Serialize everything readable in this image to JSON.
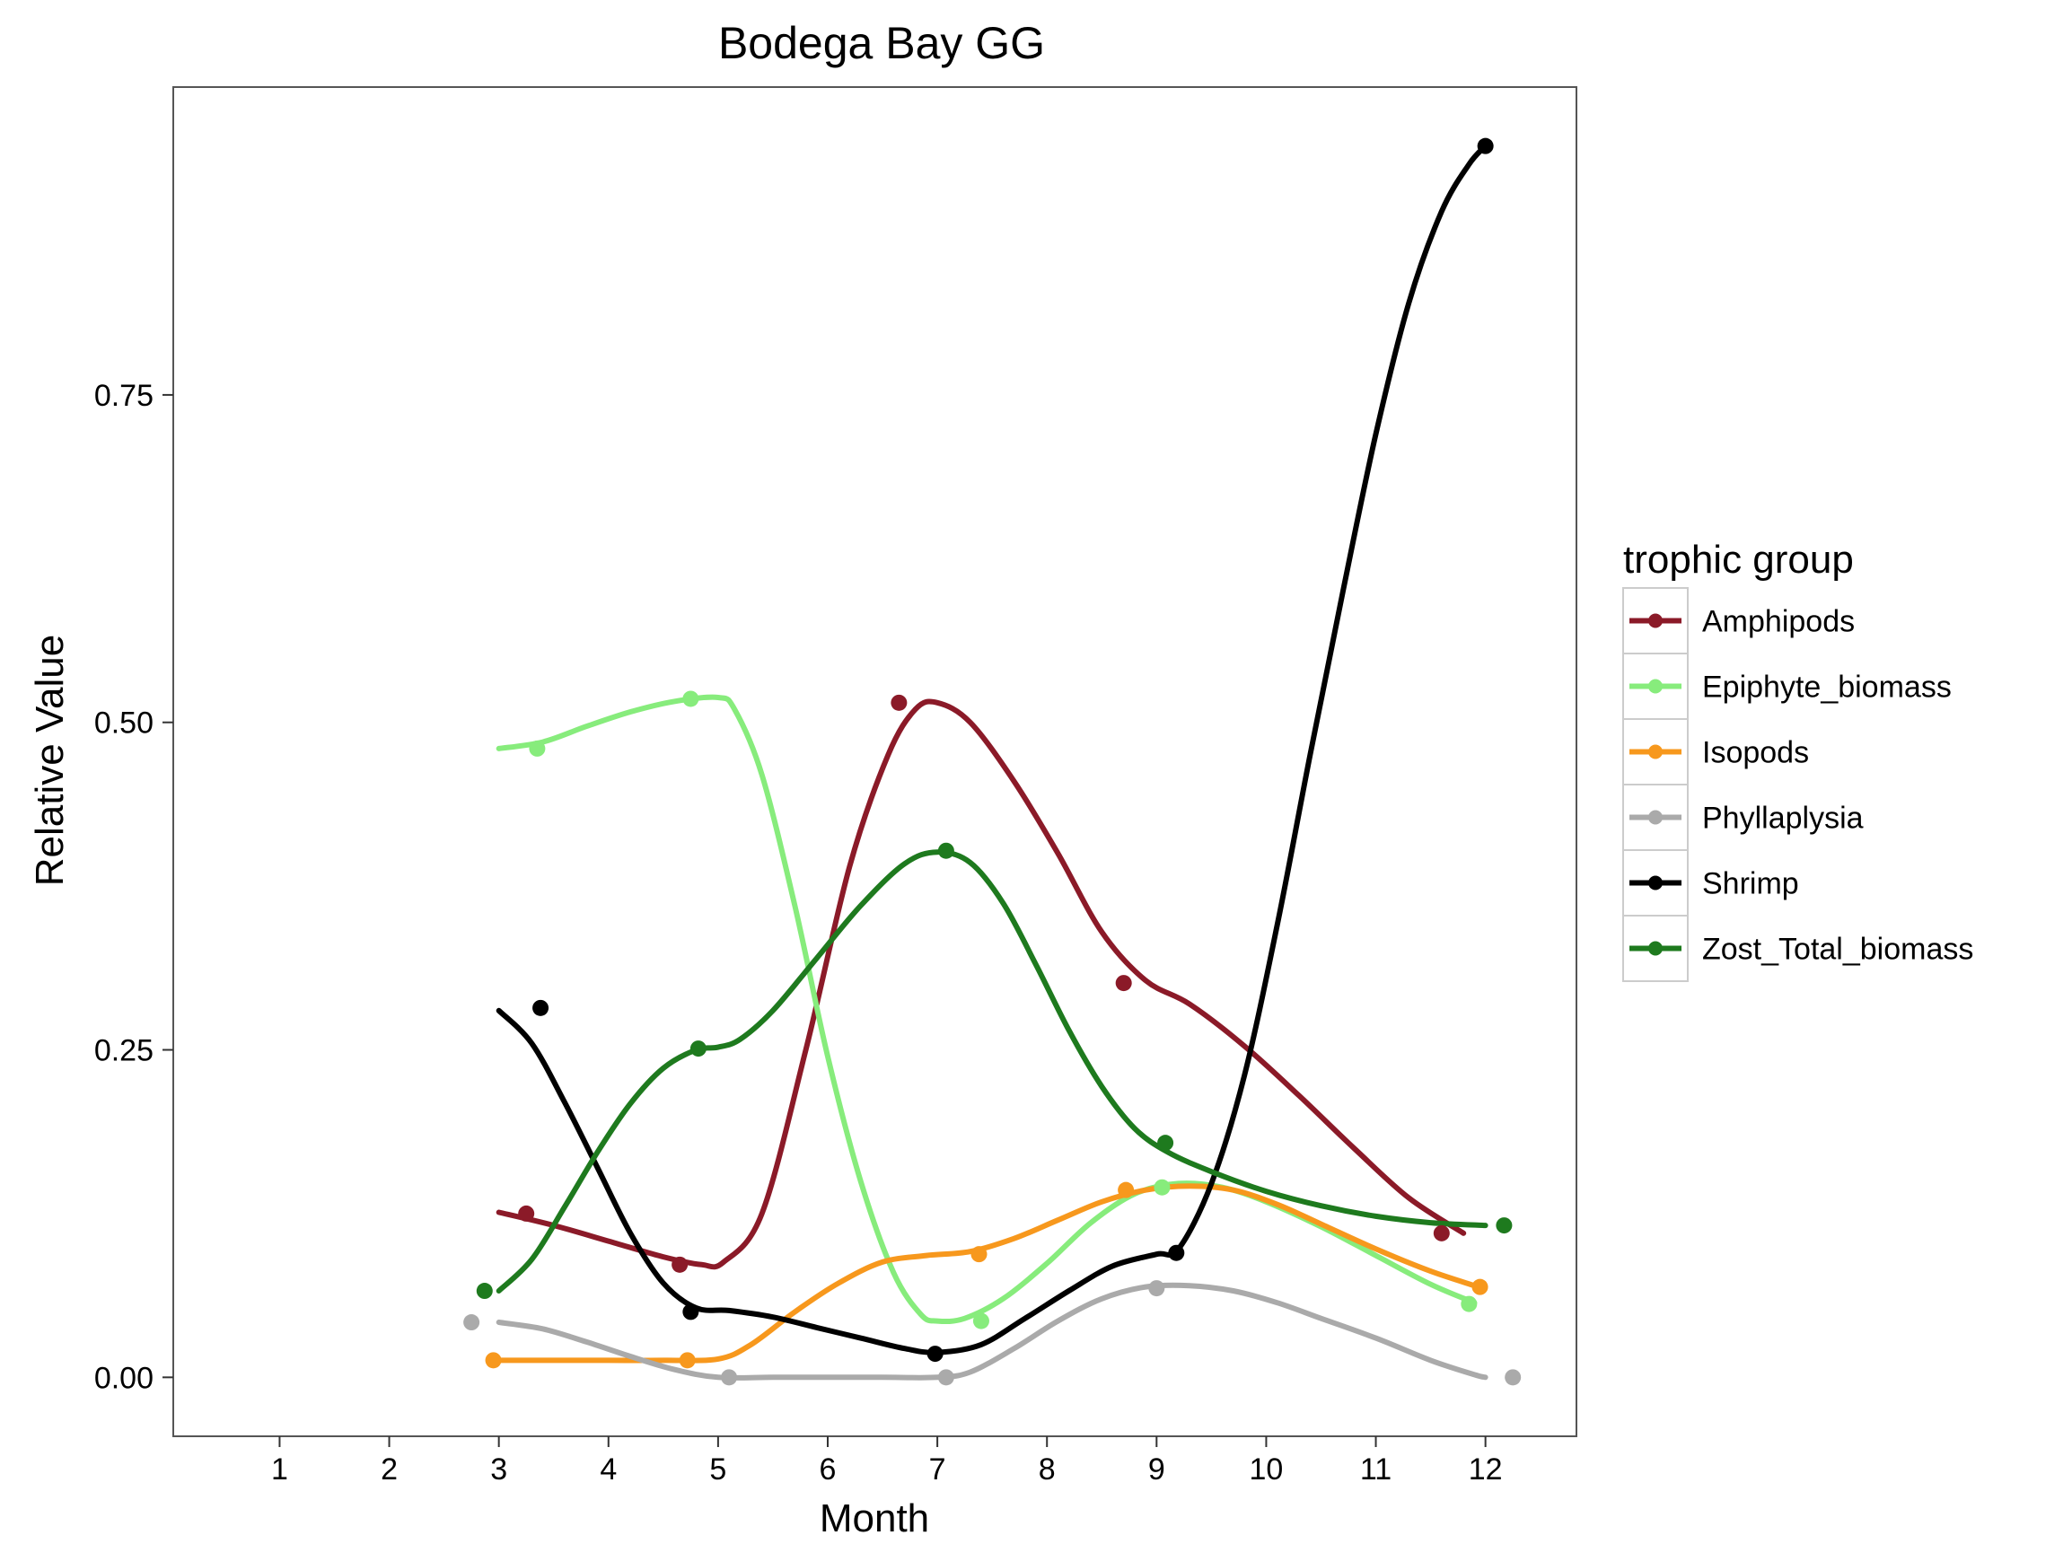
{
  "chart_data": {
    "type": "line",
    "title": "Bodega Bay GG",
    "xlabel": "Month",
    "ylabel": "Relative Value",
    "xlim": [
      0.03,
      12.83
    ],
    "ylim": [
      -0.045,
      0.985
    ],
    "x_ticks": [
      1,
      2,
      3,
      4,
      5,
      6,
      7,
      8,
      9,
      10,
      11,
      12
    ],
    "x_tick_labels": [
      "1",
      "2",
      "3",
      "4",
      "5",
      "6",
      "7",
      "8",
      "9",
      "10",
      "11",
      "12"
    ],
    "y_ticks": [
      0,
      0.25,
      0.5,
      0.75
    ],
    "y_tick_labels": [
      "0.00",
      "0.25",
      "0.50",
      "0.75"
    ],
    "grid": false,
    "legend": {
      "title": "trophic group",
      "position": "right"
    },
    "series": [
      {
        "name": "Amphipods",
        "color": "#8B1A28",
        "points": [
          [
            3.25,
            0.125
          ],
          [
            4.65,
            0.086
          ],
          [
            6.65,
            0.515
          ],
          [
            8.7,
            0.301
          ],
          [
            11.6,
            0.11
          ]
        ],
        "curve": [
          [
            3.0,
            0.126
          ],
          [
            3.5,
            0.116
          ],
          [
            4.0,
            0.104
          ],
          [
            4.5,
            0.092
          ],
          [
            4.85,
            0.086
          ],
          [
            5.05,
            0.088
          ],
          [
            5.4,
            0.125
          ],
          [
            5.8,
            0.25
          ],
          [
            6.2,
            0.39
          ],
          [
            6.55,
            0.475
          ],
          [
            6.8,
            0.51
          ],
          [
            7.0,
            0.515
          ],
          [
            7.3,
            0.5
          ],
          [
            7.7,
            0.455
          ],
          [
            8.1,
            0.4
          ],
          [
            8.5,
            0.34
          ],
          [
            8.9,
            0.303
          ],
          [
            9.3,
            0.285
          ],
          [
            9.8,
            0.253
          ],
          [
            10.3,
            0.215
          ],
          [
            10.8,
            0.175
          ],
          [
            11.3,
            0.137
          ],
          [
            11.8,
            0.11
          ]
        ]
      },
      {
        "name": "Epiphyte_biomass",
        "color": "#87EC7C",
        "points": [
          [
            3.35,
            0.48
          ],
          [
            4.75,
            0.518
          ],
          [
            7.4,
            0.043
          ],
          [
            9.05,
            0.145
          ],
          [
            11.85,
            0.056
          ]
        ],
        "curve": [
          [
            3.0,
            0.48
          ],
          [
            3.4,
            0.485
          ],
          [
            3.8,
            0.497
          ],
          [
            4.2,
            0.508
          ],
          [
            4.6,
            0.516
          ],
          [
            5.0,
            0.519
          ],
          [
            5.15,
            0.51
          ],
          [
            5.4,
            0.46
          ],
          [
            5.7,
            0.36
          ],
          [
            6.0,
            0.245
          ],
          [
            6.3,
            0.15
          ],
          [
            6.6,
            0.08
          ],
          [
            6.85,
            0.048
          ],
          [
            7.0,
            0.043
          ],
          [
            7.25,
            0.045
          ],
          [
            7.6,
            0.06
          ],
          [
            8.0,
            0.087
          ],
          [
            8.4,
            0.118
          ],
          [
            8.8,
            0.14
          ],
          [
            9.2,
            0.148
          ],
          [
            9.6,
            0.145
          ],
          [
            10.0,
            0.134
          ],
          [
            10.5,
            0.115
          ],
          [
            11.0,
            0.093
          ],
          [
            11.5,
            0.071
          ],
          [
            11.9,
            0.057
          ]
        ]
      },
      {
        "name": "Isopods",
        "color": "#F7981D",
        "points": [
          [
            2.95,
            0.013
          ],
          [
            4.72,
            0.013
          ],
          [
            7.38,
            0.094
          ],
          [
            8.72,
            0.143
          ],
          [
            11.95,
            0.069
          ]
        ],
        "curve": [
          [
            3.0,
            0.013
          ],
          [
            3.5,
            0.013
          ],
          [
            4.0,
            0.013
          ],
          [
            4.5,
            0.013
          ],
          [
            5.0,
            0.014
          ],
          [
            5.3,
            0.025
          ],
          [
            5.7,
            0.05
          ],
          [
            6.1,
            0.072
          ],
          [
            6.5,
            0.088
          ],
          [
            6.9,
            0.093
          ],
          [
            7.3,
            0.096
          ],
          [
            7.7,
            0.106
          ],
          [
            8.1,
            0.12
          ],
          [
            8.5,
            0.134
          ],
          [
            8.9,
            0.143
          ],
          [
            9.3,
            0.146
          ],
          [
            9.7,
            0.143
          ],
          [
            10.1,
            0.132
          ],
          [
            10.5,
            0.117
          ],
          [
            11.0,
            0.098
          ],
          [
            11.5,
            0.081
          ],
          [
            11.9,
            0.07
          ]
        ]
      },
      {
        "name": "Phyllaplysia",
        "color": "#AAAAAA",
        "points": [
          [
            2.75,
            0.042
          ],
          [
            5.1,
            0.0
          ],
          [
            7.08,
            0.0
          ],
          [
            9.0,
            0.068
          ],
          [
            12.25,
            0.0
          ]
        ],
        "curve": [
          [
            3.0,
            0.042
          ],
          [
            3.4,
            0.037
          ],
          [
            3.8,
            0.027
          ],
          [
            4.2,
            0.016
          ],
          [
            4.6,
            0.006
          ],
          [
            5.0,
            0.0
          ],
          [
            5.5,
            0.0
          ],
          [
            6.0,
            0.0
          ],
          [
            6.5,
            0.0
          ],
          [
            7.0,
            0.0
          ],
          [
            7.3,
            0.004
          ],
          [
            7.7,
            0.022
          ],
          [
            8.1,
            0.043
          ],
          [
            8.5,
            0.06
          ],
          [
            8.9,
            0.069
          ],
          [
            9.3,
            0.07
          ],
          [
            9.7,
            0.066
          ],
          [
            10.1,
            0.057
          ],
          [
            10.5,
            0.045
          ],
          [
            11.0,
            0.03
          ],
          [
            11.5,
            0.013
          ],
          [
            11.9,
            0.002
          ],
          [
            12.0,
            0.0
          ]
        ]
      },
      {
        "name": "Shrimp",
        "color": "#000000",
        "points": [
          [
            3.38,
            0.282
          ],
          [
            4.75,
            0.05
          ],
          [
            6.98,
            0.018
          ],
          [
            9.18,
            0.095
          ],
          [
            12.0,
            0.94
          ]
        ],
        "curve": [
          [
            3.0,
            0.28
          ],
          [
            3.3,
            0.255
          ],
          [
            3.6,
            0.21
          ],
          [
            3.9,
            0.16
          ],
          [
            4.2,
            0.11
          ],
          [
            4.5,
            0.072
          ],
          [
            4.8,
            0.053
          ],
          [
            5.1,
            0.051
          ],
          [
            5.5,
            0.046
          ],
          [
            5.9,
            0.038
          ],
          [
            6.3,
            0.03
          ],
          [
            6.7,
            0.022
          ],
          [
            7.0,
            0.019
          ],
          [
            7.4,
            0.025
          ],
          [
            7.8,
            0.045
          ],
          [
            8.2,
            0.066
          ],
          [
            8.6,
            0.085
          ],
          [
            9.0,
            0.094
          ],
          [
            9.2,
            0.098
          ],
          [
            9.5,
            0.148
          ],
          [
            9.8,
            0.23
          ],
          [
            10.1,
            0.345
          ],
          [
            10.4,
            0.475
          ],
          [
            10.7,
            0.6
          ],
          [
            11.0,
            0.72
          ],
          [
            11.3,
            0.82
          ],
          [
            11.6,
            0.89
          ],
          [
            11.85,
            0.926
          ],
          [
            12.0,
            0.94
          ]
        ]
      },
      {
        "name": "Zost_Total_biomass",
        "color": "#1E7A1E",
        "points": [
          [
            2.87,
            0.066
          ],
          [
            4.82,
            0.251
          ],
          [
            7.08,
            0.402
          ],
          [
            9.08,
            0.179
          ],
          [
            12.17,
            0.116
          ]
        ],
        "curve": [
          [
            3.0,
            0.066
          ],
          [
            3.3,
            0.09
          ],
          [
            3.6,
            0.13
          ],
          [
            3.9,
            0.172
          ],
          [
            4.2,
            0.209
          ],
          [
            4.5,
            0.236
          ],
          [
            4.8,
            0.25
          ],
          [
            5.0,
            0.252
          ],
          [
            5.2,
            0.258
          ],
          [
            5.5,
            0.28
          ],
          [
            5.9,
            0.32
          ],
          [
            6.3,
            0.36
          ],
          [
            6.7,
            0.392
          ],
          [
            7.0,
            0.401
          ],
          [
            7.3,
            0.393
          ],
          [
            7.6,
            0.362
          ],
          [
            7.9,
            0.315
          ],
          [
            8.2,
            0.265
          ],
          [
            8.5,
            0.222
          ],
          [
            8.8,
            0.19
          ],
          [
            9.1,
            0.172
          ],
          [
            9.5,
            0.157
          ],
          [
            10.0,
            0.142
          ],
          [
            10.5,
            0.131
          ],
          [
            11.0,
            0.123
          ],
          [
            11.5,
            0.118
          ],
          [
            12.0,
            0.116
          ]
        ]
      }
    ]
  }
}
